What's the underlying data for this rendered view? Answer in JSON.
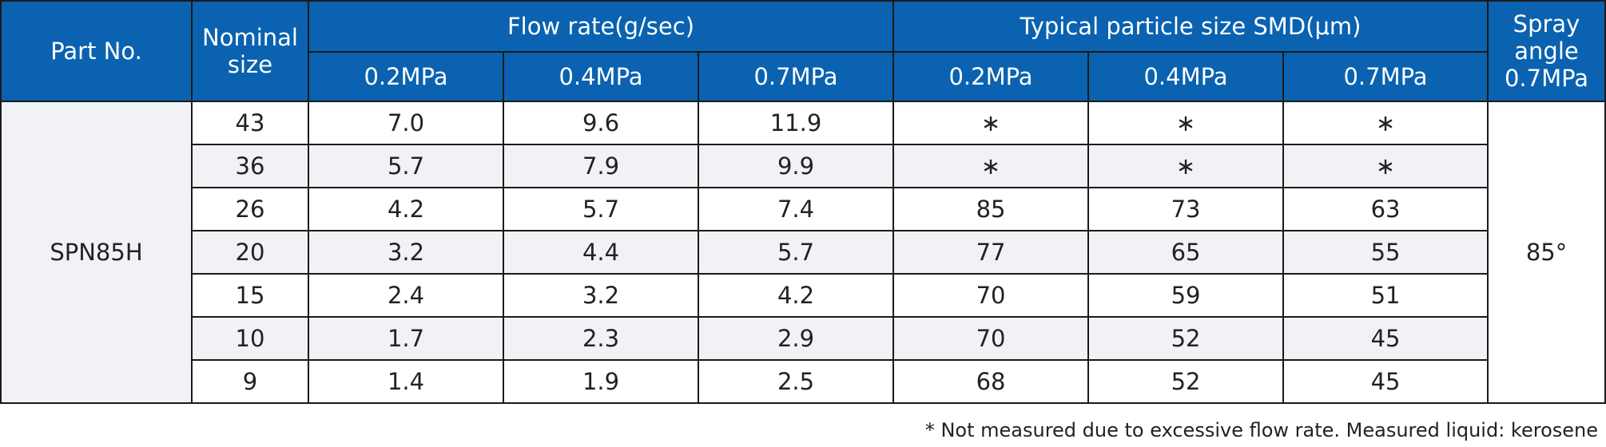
{
  "header": {
    "part_no": "Part No.",
    "nominal_1": "Nominal",
    "nominal_2": "size",
    "flow_rate": "Flow rate(g/sec)",
    "particle_size": "Typical particle size SMD(μm)",
    "spray_1": "Spray",
    "spray_2": "angle",
    "spray_3": "0.7MPa",
    "pressures": [
      "0.2MPa",
      "0.4MPa",
      "0.7MPa"
    ]
  },
  "part_no": "SPN85H",
  "spray_angle": "85°",
  "rows": [
    {
      "size": "43",
      "flow": [
        "7.0",
        "9.6",
        "11.9"
      ],
      "smd": [
        "∗",
        "∗",
        "∗"
      ]
    },
    {
      "size": "36",
      "flow": [
        "5.7",
        "7.9",
        "9.9"
      ],
      "smd": [
        "∗",
        "∗",
        "∗"
      ]
    },
    {
      "size": "26",
      "flow": [
        "4.2",
        "5.7",
        "7.4"
      ],
      "smd": [
        "85",
        "73",
        "63"
      ]
    },
    {
      "size": "20",
      "flow": [
        "3.2",
        "4.4",
        "5.7"
      ],
      "smd": [
        "77",
        "65",
        "55"
      ]
    },
    {
      "size": "15",
      "flow": [
        "2.4",
        "3.2",
        "4.2"
      ],
      "smd": [
        "70",
        "59",
        "51"
      ]
    },
    {
      "size": "10",
      "flow": [
        "1.7",
        "2.3",
        "2.9"
      ],
      "smd": [
        "70",
        "52",
        "45"
      ]
    },
    {
      "size": "9",
      "flow": [
        "1.4",
        "1.9",
        "2.5"
      ],
      "smd": [
        "68",
        "52",
        "45"
      ]
    }
  ],
  "footnote": "* Not measured due to excessive flow rate.  Measured liquid: kerosene",
  "colors": {
    "header_bg": "#0a62b0",
    "stripe_bg": "#f1f2f5"
  }
}
